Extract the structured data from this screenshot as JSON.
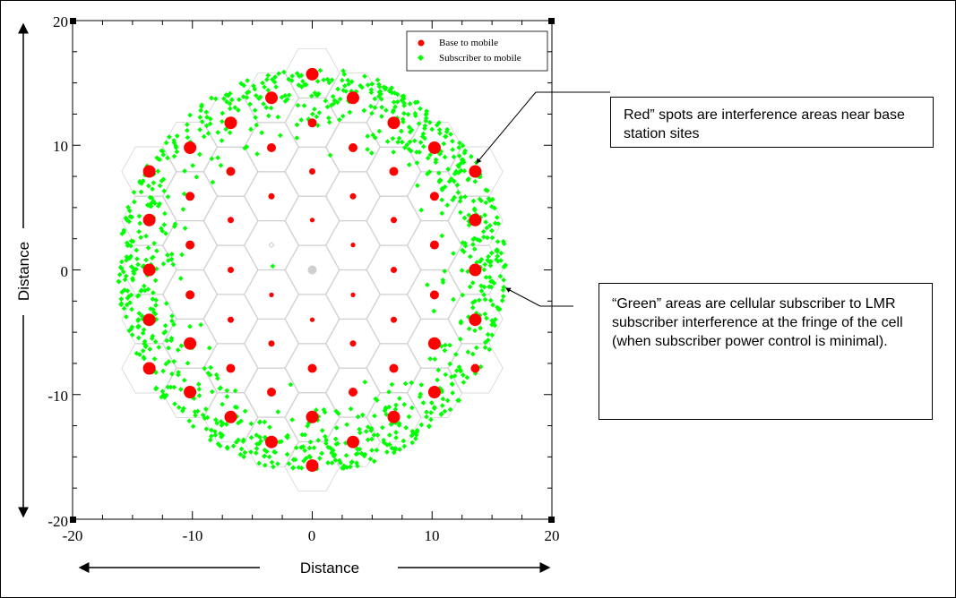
{
  "chart_data": {
    "type": "scatter",
    "xlim": [
      -20,
      20
    ],
    "ylim": [
      -20,
      20
    ],
    "x_ticks": [
      "-20",
      "-10",
      "0",
      "10",
      "20"
    ],
    "y_ticks": [
      "20",
      "10",
      "0",
      "-10",
      "-20"
    ],
    "xlabel": "Distance",
    "ylabel": "Distance",
    "grid": false,
    "legend_position": "top-right",
    "series": [
      {
        "name": "Base to mobile",
        "color": "#ff0000"
      },
      {
        "name": "Subscriber to mobile",
        "color": "#00ff00"
      }
    ],
    "base_sites": [
      {
        "x": 0,
        "y": 15.7,
        "s": "l"
      },
      {
        "x": -3.4,
        "y": 13.8,
        "s": "l"
      },
      {
        "x": 3.4,
        "y": 13.8,
        "s": "l"
      },
      {
        "x": -6.8,
        "y": 11.8,
        "s": "l"
      },
      {
        "x": 0,
        "y": 11.8,
        "s": "m"
      },
      {
        "x": 6.8,
        "y": 11.8,
        "s": "l"
      },
      {
        "x": -10.2,
        "y": 9.8,
        "s": "l"
      },
      {
        "x": -3.4,
        "y": 9.8,
        "s": "m"
      },
      {
        "x": 3.4,
        "y": 9.8,
        "s": "m"
      },
      {
        "x": 10.2,
        "y": 9.8,
        "s": "l"
      },
      {
        "x": -13.6,
        "y": 7.9,
        "s": "l"
      },
      {
        "x": -6.8,
        "y": 7.9,
        "s": "m"
      },
      {
        "x": 0,
        "y": 7.9,
        "s": "s"
      },
      {
        "x": 6.8,
        "y": 7.9,
        "s": "m"
      },
      {
        "x": 13.6,
        "y": 7.9,
        "s": "l"
      },
      {
        "x": -10.2,
        "y": 5.9,
        "s": "m"
      },
      {
        "x": -3.4,
        "y": 5.9,
        "s": "s"
      },
      {
        "x": 3.4,
        "y": 5.9,
        "s": "s"
      },
      {
        "x": 10.2,
        "y": 5.9,
        "s": "m"
      },
      {
        "x": -13.6,
        "y": 4.0,
        "s": "l"
      },
      {
        "x": -6.8,
        "y": 4.0,
        "s": "s"
      },
      {
        "x": 0,
        "y": 4.0,
        "s": "xs"
      },
      {
        "x": 6.8,
        "y": 4.0,
        "s": "s"
      },
      {
        "x": 13.6,
        "y": 4.0,
        "s": "l"
      },
      {
        "x": -10.2,
        "y": 2.0,
        "s": "m"
      },
      {
        "x": 3.4,
        "y": 2.0,
        "s": "xs"
      },
      {
        "x": 10.2,
        "y": 2.0,
        "s": "m"
      },
      {
        "x": -13.6,
        "y": 0,
        "s": "l"
      },
      {
        "x": -6.8,
        "y": 0,
        "s": "s"
      },
      {
        "x": 6.8,
        "y": 0,
        "s": "s"
      },
      {
        "x": 13.6,
        "y": 0,
        "s": "l"
      },
      {
        "x": -10.2,
        "y": -2.0,
        "s": "m"
      },
      {
        "x": -3.4,
        "y": -2.0,
        "s": "xs"
      },
      {
        "x": 3.4,
        "y": -2.0,
        "s": "xs"
      },
      {
        "x": 10.2,
        "y": -2.0,
        "s": "m"
      },
      {
        "x": -13.6,
        "y": -4.0,
        "s": "l"
      },
      {
        "x": -6.8,
        "y": -4.0,
        "s": "s"
      },
      {
        "x": 0,
        "y": -4.0,
        "s": "xs"
      },
      {
        "x": 6.8,
        "y": -4.0,
        "s": "s"
      },
      {
        "x": 13.6,
        "y": -4.0,
        "s": "l"
      },
      {
        "x": -10.2,
        "y": -5.9,
        "s": "l"
      },
      {
        "x": -3.4,
        "y": -5.9,
        "s": "s"
      },
      {
        "x": 3.4,
        "y": -5.9,
        "s": "s"
      },
      {
        "x": 10.2,
        "y": -5.9,
        "s": "l"
      },
      {
        "x": -13.6,
        "y": -7.9,
        "s": "l"
      },
      {
        "x": -6.8,
        "y": -7.9,
        "s": "m"
      },
      {
        "x": 0,
        "y": -7.9,
        "s": "m"
      },
      {
        "x": 6.8,
        "y": -7.9,
        "s": "m"
      },
      {
        "x": 13.6,
        "y": -7.9,
        "s": "m"
      },
      {
        "x": -10.2,
        "y": -9.8,
        "s": "l"
      },
      {
        "x": -3.4,
        "y": -9.8,
        "s": "m"
      },
      {
        "x": 3.4,
        "y": -9.8,
        "s": "m"
      },
      {
        "x": 10.2,
        "y": -9.8,
        "s": "l"
      },
      {
        "x": -6.8,
        "y": -11.8,
        "s": "l"
      },
      {
        "x": 0,
        "y": -11.8,
        "s": "l"
      },
      {
        "x": 6.8,
        "y": -11.8,
        "s": "l"
      },
      {
        "x": -3.4,
        "y": -13.8,
        "s": "l"
      },
      {
        "x": 3.4,
        "y": -13.8,
        "s": "l"
      },
      {
        "x": 0,
        "y": -15.7,
        "s": "l"
      }
    ],
    "subscriber_band": {
      "r_min": 10.5,
      "r_max": 16.2
    }
  },
  "callouts": {
    "red": "Red” spots are interference areas near base station sites",
    "green": "“Green” areas are cellular subscriber to LMR subscriber interference at the fringe of the cell (when subscriber power control is minimal)."
  }
}
